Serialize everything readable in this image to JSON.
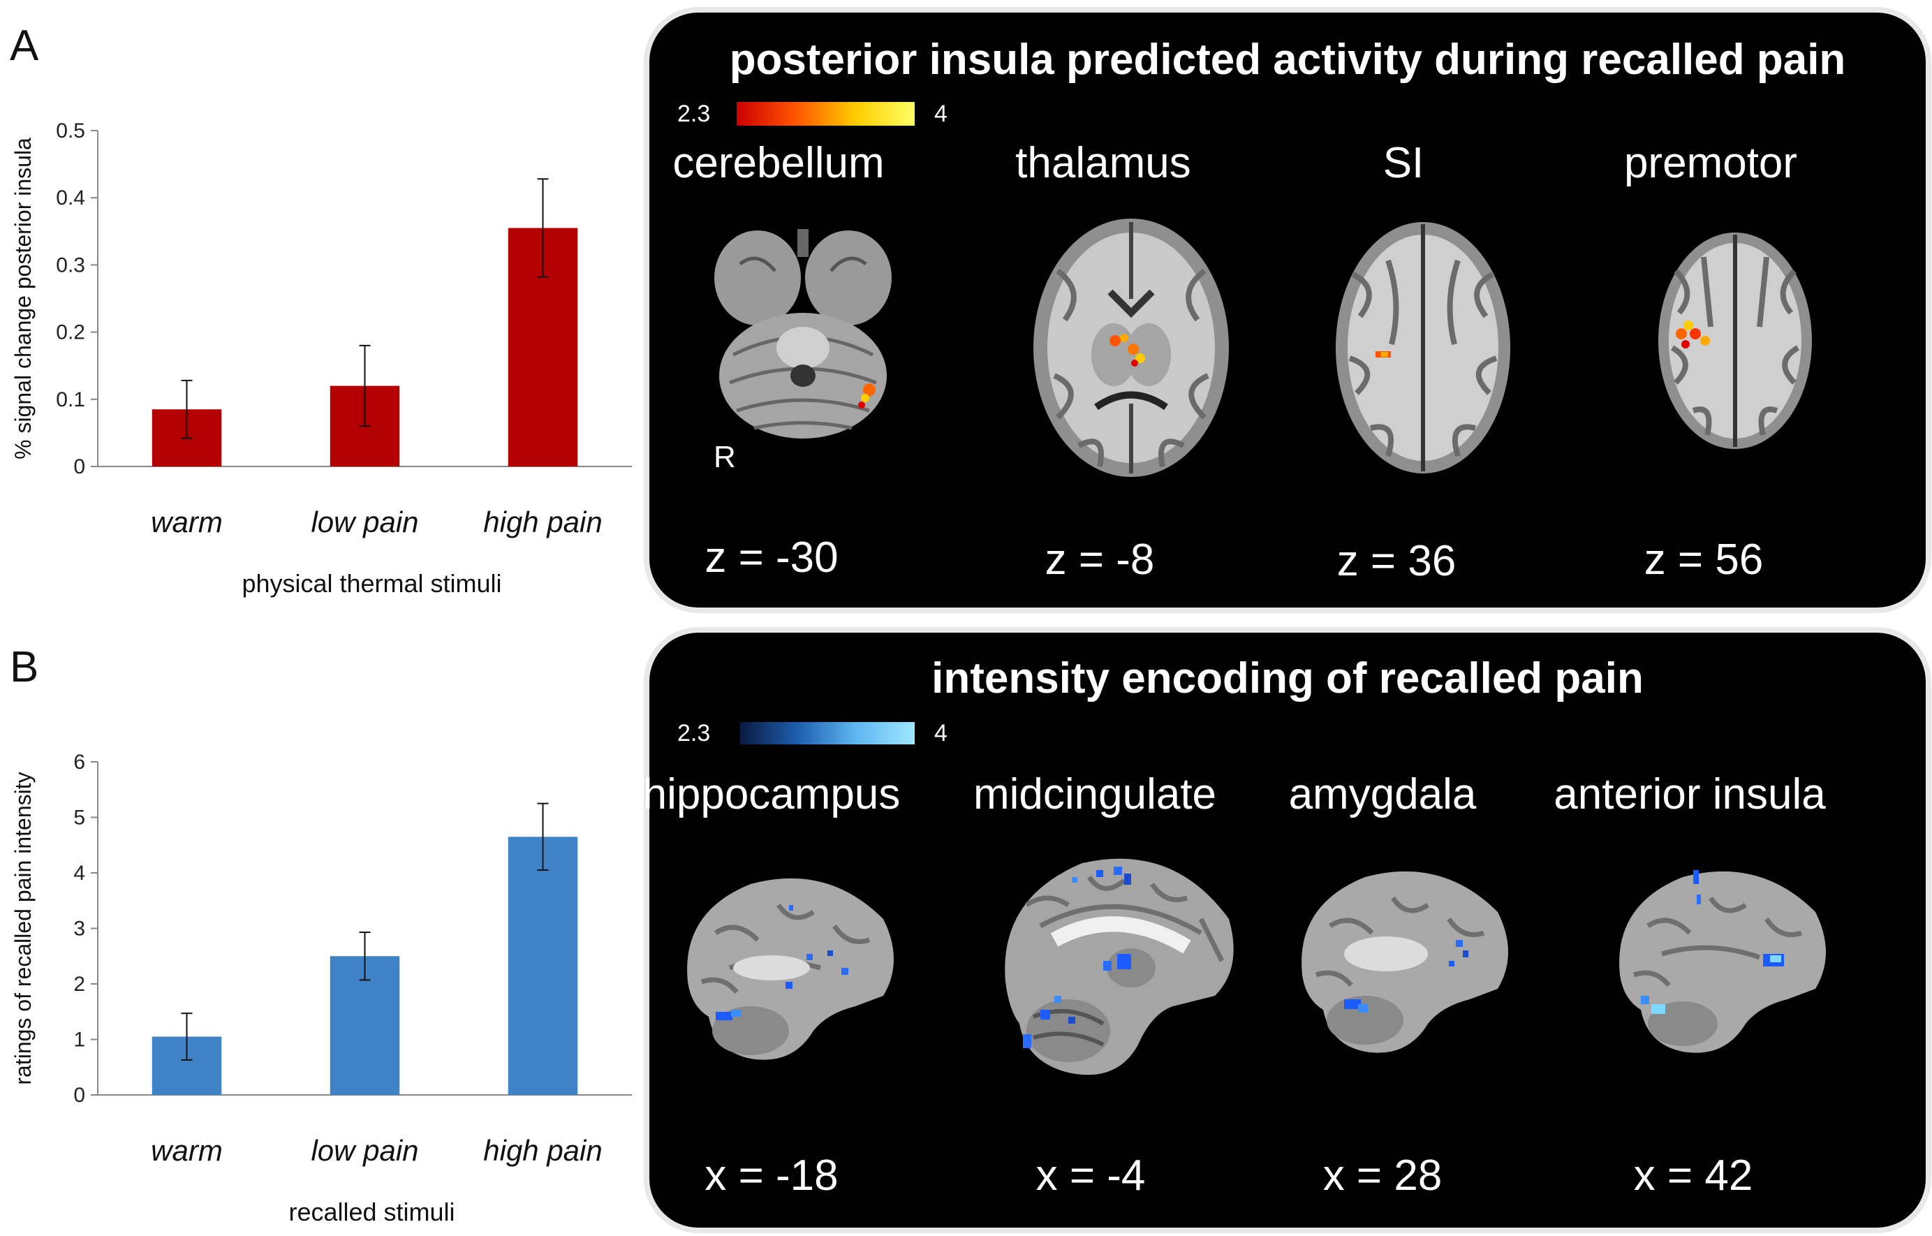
{
  "panels": {
    "a_letter": "A",
    "b_letter": "B"
  },
  "chart_data": [
    {
      "type": "bar",
      "title": "",
      "categories": [
        "warm",
        "low pain",
        "high pain"
      ],
      "values": [
        0.085,
        0.12,
        0.355
      ],
      "errors": [
        0.043,
        0.06,
        0.073
      ],
      "xlabel": "physical thermal stimuli",
      "ylabel": "% signal change posterior insula",
      "ylim": [
        0,
        0.5
      ],
      "yticks": [
        0,
        0.1,
        0.2,
        0.3,
        0.4,
        0.5
      ],
      "ytick_labels": [
        "0",
        "0.1",
        "0.2",
        "0.3",
        "0.4",
        "0.5"
      ],
      "color": "#b30000"
    },
    {
      "type": "bar",
      "title": "",
      "categories": [
        "warm",
        "low pain",
        "high pain"
      ],
      "values": [
        1.05,
        2.5,
        4.65
      ],
      "errors": [
        0.42,
        0.43,
        0.6
      ],
      "xlabel": "recalled stimuli",
      "ylabel": "ratings of recalled pain intensity",
      "ylim": [
        0,
        6
      ],
      "yticks": [
        0,
        1,
        2,
        3,
        4,
        5,
        6
      ],
      "ytick_labels": [
        "0",
        "1",
        "2",
        "3",
        "4",
        "5",
        "6"
      ],
      "color": "#3f82c6"
    }
  ],
  "top_panel": {
    "title": "posterior insula predicted activity during recalled pain",
    "colorbar": {
      "min_label": "2.3",
      "max_label": "4",
      "colors": [
        "#cc0000",
        "#ff5500",
        "#ffcc00",
        "#ffff66"
      ]
    },
    "regions": [
      "cerebellum",
      "thalamus",
      "SI",
      "premotor"
    ],
    "coords": [
      "z = -30",
      "z = -8",
      "z = 36",
      "z = 56"
    ],
    "side_label": "R"
  },
  "bottom_panel": {
    "title": "intensity encoding of recalled pain",
    "colorbar": {
      "min_label": "2.3",
      "max_label": "4",
      "colors": [
        "#0a1a40",
        "#1f5fb0",
        "#5fb8f0",
        "#9fe6ff"
      ]
    },
    "regions": [
      "hippocampus",
      "midcingulate",
      "amygdala",
      "anterior insula"
    ],
    "coords": [
      "x = -18",
      "x = -4",
      "x = 28",
      "x = 42"
    ]
  }
}
